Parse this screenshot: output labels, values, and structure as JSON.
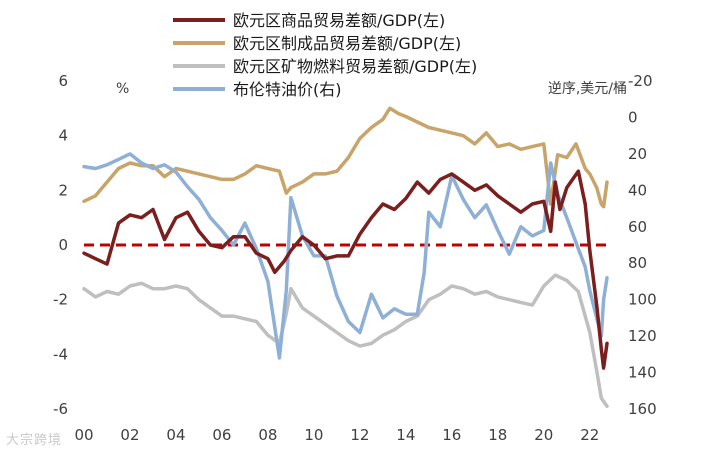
{
  "watermark": "大宗跨境",
  "chart_data": {
    "type": "line",
    "title": "",
    "x_tick_labels": [
      "00",
      "02",
      "04",
      "06",
      "08",
      "10",
      "12",
      "14",
      "16",
      "18",
      "20",
      "22"
    ],
    "x_range": [
      2000,
      2022.75
    ],
    "left_axis": {
      "unit_label": "%",
      "ylim": [
        -6,
        6
      ],
      "ticks": [
        -6,
        -4,
        -2,
        0,
        2,
        4,
        6
      ]
    },
    "right_axis": {
      "unit_label": "逆序,美元/桶",
      "ylim": [
        160,
        -20
      ],
      "inverted": true,
      "ticks": [
        -20,
        0,
        20,
        40,
        60,
        80,
        100,
        120,
        140,
        160
      ]
    },
    "reference_line": {
      "axis": "left",
      "y": 0,
      "color": "#c00000",
      "style": "dashed"
    },
    "series": [
      {
        "name": "欧元区商品贸易差额/GDP(左)",
        "axis": "left",
        "color": "#7b1e1e",
        "points": [
          [
            2000,
            -0.3
          ],
          [
            2000.5,
            -0.5
          ],
          [
            2001,
            -0.7
          ],
          [
            2001.5,
            0.8
          ],
          [
            2002,
            1.1
          ],
          [
            2002.5,
            1.0
          ],
          [
            2003,
            1.3
          ],
          [
            2003.5,
            0.2
          ],
          [
            2004,
            1.0
          ],
          [
            2004.5,
            1.2
          ],
          [
            2005,
            0.5
          ],
          [
            2005.5,
            0.0
          ],
          [
            2006,
            -0.1
          ],
          [
            2006.5,
            0.3
          ],
          [
            2007,
            0.3
          ],
          [
            2007.5,
            -0.3
          ],
          [
            2008,
            -0.5
          ],
          [
            2008.3,
            -1.0
          ],
          [
            2008.7,
            -0.6
          ],
          [
            2009,
            -0.2
          ],
          [
            2009.5,
            0.3
          ],
          [
            2010,
            0.0
          ],
          [
            2010.5,
            -0.5
          ],
          [
            2011,
            -0.4
          ],
          [
            2011.5,
            -0.4
          ],
          [
            2012,
            0.4
          ],
          [
            2012.5,
            1.0
          ],
          [
            2013,
            1.5
          ],
          [
            2013.5,
            1.3
          ],
          [
            2014,
            1.7
          ],
          [
            2014.5,
            2.3
          ],
          [
            2015,
            1.9
          ],
          [
            2015.5,
            2.4
          ],
          [
            2016,
            2.6
          ],
          [
            2016.5,
            2.3
          ],
          [
            2017,
            2.0
          ],
          [
            2017.5,
            2.2
          ],
          [
            2018,
            1.8
          ],
          [
            2018.5,
            1.5
          ],
          [
            2019,
            1.2
          ],
          [
            2019.5,
            1.5
          ],
          [
            2020,
            1.6
          ],
          [
            2020.3,
            0.5
          ],
          [
            2020.5,
            2.3
          ],
          [
            2020.7,
            1.3
          ],
          [
            2021,
            2.1
          ],
          [
            2021.5,
            2.7
          ],
          [
            2021.8,
            1.5
          ],
          [
            2022,
            -0.2
          ],
          [
            2022.3,
            -2.2
          ],
          [
            2022.5,
            -3.8
          ],
          [
            2022.6,
            -4.5
          ],
          [
            2022.75,
            -3.6
          ]
        ]
      },
      {
        "name": "欧元区制成品贸易差额/GDP(左)",
        "axis": "left",
        "color": "#c8a46a",
        "points": [
          [
            2000,
            1.6
          ],
          [
            2000.5,
            1.8
          ],
          [
            2001,
            2.3
          ],
          [
            2001.5,
            2.8
          ],
          [
            2002,
            3.0
          ],
          [
            2002.5,
            2.9
          ],
          [
            2003,
            2.9
          ],
          [
            2003.5,
            2.5
          ],
          [
            2004,
            2.8
          ],
          [
            2004.5,
            2.7
          ],
          [
            2005,
            2.6
          ],
          [
            2005.5,
            2.5
          ],
          [
            2006,
            2.4
          ],
          [
            2006.5,
            2.4
          ],
          [
            2007,
            2.6
          ],
          [
            2007.5,
            2.9
          ],
          [
            2008,
            2.8
          ],
          [
            2008.5,
            2.7
          ],
          [
            2008.8,
            1.9
          ],
          [
            2009,
            2.1
          ],
          [
            2009.5,
            2.3
          ],
          [
            2010,
            2.6
          ],
          [
            2010.5,
            2.6
          ],
          [
            2011,
            2.7
          ],
          [
            2011.5,
            3.2
          ],
          [
            2012,
            3.9
          ],
          [
            2012.5,
            4.3
          ],
          [
            2013,
            4.6
          ],
          [
            2013.3,
            5.0
          ],
          [
            2013.7,
            4.8
          ],
          [
            2014,
            4.7
          ],
          [
            2014.5,
            4.5
          ],
          [
            2015,
            4.3
          ],
          [
            2015.5,
            4.2
          ],
          [
            2016,
            4.1
          ],
          [
            2016.5,
            4.0
          ],
          [
            2017,
            3.7
          ],
          [
            2017.5,
            4.1
          ],
          [
            2018,
            3.6
          ],
          [
            2018.5,
            3.7
          ],
          [
            2019,
            3.5
          ],
          [
            2019.5,
            3.6
          ],
          [
            2020,
            3.7
          ],
          [
            2020.3,
            1.5
          ],
          [
            2020.6,
            3.3
          ],
          [
            2021,
            3.2
          ],
          [
            2021.4,
            3.7
          ],
          [
            2021.8,
            2.8
          ],
          [
            2022,
            2.6
          ],
          [
            2022.3,
            2.1
          ],
          [
            2022.5,
            1.5
          ],
          [
            2022.6,
            1.4
          ],
          [
            2022.75,
            2.3
          ]
        ]
      },
      {
        "name": "欧元区矿物燃料贸易差额/GDP(左)",
        "axis": "left",
        "color": "#bfbfbf",
        "points": [
          [
            2000,
            -1.6
          ],
          [
            2000.5,
            -1.9
          ],
          [
            2001,
            -1.7
          ],
          [
            2001.5,
            -1.8
          ],
          [
            2002,
            -1.5
          ],
          [
            2002.5,
            -1.4
          ],
          [
            2003,
            -1.6
          ],
          [
            2003.5,
            -1.6
          ],
          [
            2004,
            -1.5
          ],
          [
            2004.5,
            -1.6
          ],
          [
            2005,
            -2.0
          ],
          [
            2005.5,
            -2.3
          ],
          [
            2006,
            -2.6
          ],
          [
            2006.5,
            -2.6
          ],
          [
            2007,
            -2.7
          ],
          [
            2007.5,
            -2.8
          ],
          [
            2008,
            -3.3
          ],
          [
            2008.5,
            -3.6
          ],
          [
            2008.8,
            -2.5
          ],
          [
            2009,
            -1.6
          ],
          [
            2009.5,
            -2.3
          ],
          [
            2010,
            -2.6
          ],
          [
            2010.5,
            -2.9
          ],
          [
            2011,
            -3.2
          ],
          [
            2011.5,
            -3.5
          ],
          [
            2012,
            -3.7
          ],
          [
            2012.5,
            -3.6
          ],
          [
            2013,
            -3.3
          ],
          [
            2013.5,
            -3.1
          ],
          [
            2014,
            -2.8
          ],
          [
            2014.5,
            -2.6
          ],
          [
            2015,
            -2.0
          ],
          [
            2015.5,
            -1.8
          ],
          [
            2016,
            -1.5
          ],
          [
            2016.5,
            -1.6
          ],
          [
            2017,
            -1.8
          ],
          [
            2017.5,
            -1.7
          ],
          [
            2018,
            -1.9
          ],
          [
            2018.5,
            -2.0
          ],
          [
            2019,
            -2.1
          ],
          [
            2019.5,
            -2.2
          ],
          [
            2020,
            -1.5
          ],
          [
            2020.5,
            -1.1
          ],
          [
            2021,
            -1.3
          ],
          [
            2021.5,
            -1.7
          ],
          [
            2022,
            -3.2
          ],
          [
            2022.3,
            -4.6
          ],
          [
            2022.5,
            -5.6
          ],
          [
            2022.75,
            -5.9
          ]
        ]
      },
      {
        "name": "布伦特油价(右)",
        "axis": "right",
        "color": "#8eb0d6",
        "points": [
          [
            2000,
            27
          ],
          [
            2000.5,
            28
          ],
          [
            2001,
            26
          ],
          [
            2001.5,
            23
          ],
          [
            2002,
            20
          ],
          [
            2002.5,
            25
          ],
          [
            2003,
            28
          ],
          [
            2003.5,
            26
          ],
          [
            2004,
            30
          ],
          [
            2004.5,
            38
          ],
          [
            2005,
            45
          ],
          [
            2005.5,
            55
          ],
          [
            2006,
            62
          ],
          [
            2006.5,
            70
          ],
          [
            2007,
            58
          ],
          [
            2007.5,
            72
          ],
          [
            2008,
            90
          ],
          [
            2008.5,
            132
          ],
          [
            2008.8,
            95
          ],
          [
            2009,
            44
          ],
          [
            2009.5,
            65
          ],
          [
            2010,
            76
          ],
          [
            2010.5,
            76
          ],
          [
            2011,
            98
          ],
          [
            2011.5,
            112
          ],
          [
            2012,
            118
          ],
          [
            2012.5,
            97
          ],
          [
            2013,
            110
          ],
          [
            2013.5,
            105
          ],
          [
            2014,
            108
          ],
          [
            2014.5,
            108
          ],
          [
            2014.8,
            85
          ],
          [
            2015,
            52
          ],
          [
            2015.5,
            60
          ],
          [
            2016,
            32
          ],
          [
            2016.5,
            45
          ],
          [
            2017,
            55
          ],
          [
            2017.5,
            48
          ],
          [
            2018,
            62
          ],
          [
            2018.5,
            75
          ],
          [
            2019,
            60
          ],
          [
            2019.5,
            65
          ],
          [
            2020,
            62
          ],
          [
            2020.3,
            25
          ],
          [
            2020.6,
            42
          ],
          [
            2021,
            55
          ],
          [
            2021.5,
            72
          ],
          [
            2021.8,
            82
          ],
          [
            2022,
            95
          ],
          [
            2022.3,
            110
          ],
          [
            2022.5,
            120
          ],
          [
            2022.6,
            100
          ],
          [
            2022.75,
            88
          ]
        ]
      }
    ]
  }
}
